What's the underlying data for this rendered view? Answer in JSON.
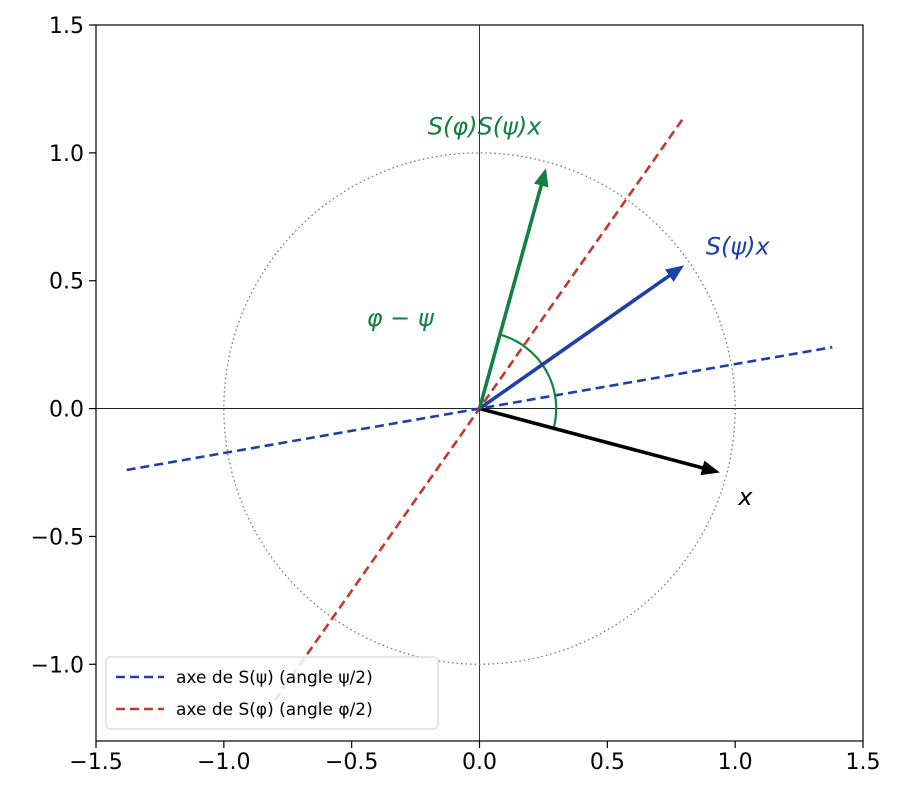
{
  "chart_data": {
    "type": "line",
    "title": "",
    "xlabel": "",
    "ylabel": "",
    "xlim": [
      -1.5,
      1.5
    ],
    "ylim": [
      -1.3,
      1.5
    ],
    "aspect": "equal",
    "grid": false,
    "legend_position": "lower-left",
    "xticks": [
      {
        "value": -1.5,
        "label": "−1.5"
      },
      {
        "value": -1.0,
        "label": "−1.0"
      },
      {
        "value": -0.5,
        "label": "−0.5"
      },
      {
        "value": 0.0,
        "label": "0.0"
      },
      {
        "value": 0.5,
        "label": "0.5"
      },
      {
        "value": 1.0,
        "label": "1.0"
      },
      {
        "value": 1.5,
        "label": "1.5"
      }
    ],
    "yticks": [
      {
        "value": -1.0,
        "label": "−1.0"
      },
      {
        "value": -0.5,
        "label": "−0.5"
      },
      {
        "value": 0.0,
        "label": "0.0"
      },
      {
        "value": 0.5,
        "label": "0.5"
      },
      {
        "value": 1.0,
        "label": "1.0"
      },
      {
        "value": 1.5,
        "label": "1.5"
      }
    ],
    "unit_circle": {
      "radius": 1.0,
      "color": "#777777",
      "style": "dotted"
    },
    "reflection_axes": [
      {
        "name": "axe de S(ψ) (angle ψ/2)",
        "color": "#1f3fa8",
        "style": "dashed",
        "x": [
          -1.38,
          1.38
        ],
        "y": [
          -0.24,
          0.24
        ]
      },
      {
        "name": "axe de S(φ) (angle φ/2)",
        "color": "#c0392b",
        "style": "dashed",
        "x": [
          -0.8,
          0.8
        ],
        "y": [
          -1.14,
          1.14
        ]
      }
    ],
    "vectors": [
      {
        "id": "x",
        "color": "#000000",
        "x": 0.94,
        "y": -0.25
      },
      {
        "id": "S_psi_x",
        "color": "#1f3fa8",
        "x": 0.8,
        "y": 0.56
      },
      {
        "id": "S_phi_S_psi_x",
        "color": "#128040",
        "x": 0.26,
        "y": 0.94
      }
    ],
    "angle_arc": {
      "color": "#128040",
      "radius": 0.3,
      "from_deg": -15,
      "to_deg": 75
    },
    "annotations": [
      {
        "id": "label-x",
        "text": "x",
        "x": 1.04,
        "y": -0.35,
        "color": "#000000"
      },
      {
        "id": "label-s-psi-x",
        "text": "S(ψ)x",
        "x": 1.01,
        "y": 0.63,
        "color": "#1f3fa8"
      },
      {
        "id": "label-s-phi-s-psi-x",
        "text": "S(φ)S(ψ)x",
        "x": 0.02,
        "y": 1.1,
        "color": "#128040"
      },
      {
        "id": "label-angle",
        "text": "φ − ψ",
        "x": -0.31,
        "y": 0.35,
        "color": "#128040"
      }
    ],
    "legend": [
      {
        "label": "axe de S(ψ) (angle ψ/2)",
        "color": "#1f3fa8"
      },
      {
        "label": "axe de S(φ) (angle φ/2)",
        "color": "#c0392b"
      }
    ]
  }
}
